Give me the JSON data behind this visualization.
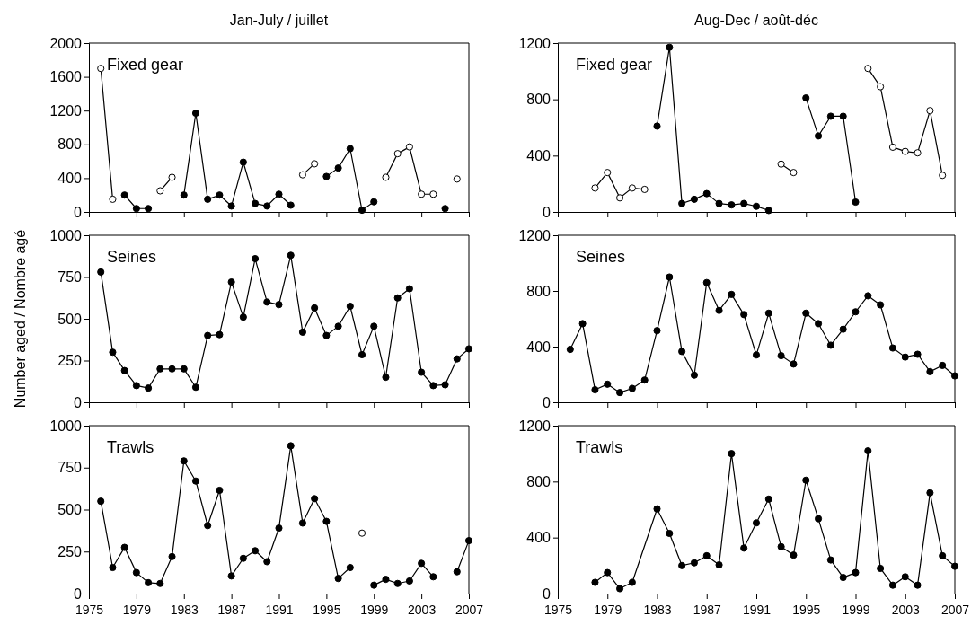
{
  "chart_data": [
    {
      "type": "line",
      "title": "Jan-July / juillet",
      "annotations": [
        "Fixed gear"
      ],
      "marker": "circle",
      "tick_labels": "y",
      "xlim": [
        1975,
        2007
      ],
      "xticks": [
        1975,
        1979,
        1983,
        1987,
        1991,
        1995,
        1999,
        2003,
        2007
      ],
      "ylim": [
        0,
        2000
      ],
      "yticks": [
        0,
        400,
        800,
        1200,
        1600,
        2000
      ],
      "series": [
        {
          "color": "#000000",
          "x": [
            1978,
            1979,
            1980,
            1981,
            1982,
            1983,
            1984,
            1985,
            1986,
            1987,
            1988,
            1989,
            1990,
            1991,
            1992,
            1993,
            1994,
            1995,
            1996,
            1997,
            1998,
            1999,
            2000,
            2001,
            2002,
            2003,
            2004,
            2005
          ],
          "values": [
            200,
            40,
            40,
            null,
            null,
            200,
            1170,
            150,
            200,
            70,
            590,
            100,
            70,
            210,
            80,
            null,
            null,
            420,
            520,
            750,
            20,
            120,
            null,
            null,
            null,
            null,
            null,
            40
          ]
        },
        {
          "color": "#000000",
          "x": [
            1976,
            1977,
            1978,
            1979,
            1980,
            1981,
            1982,
            1983,
            1984,
            1985,
            1986,
            1987,
            1988,
            1989,
            1990,
            1991,
            1992,
            1993,
            1994,
            1995,
            1996,
            1997,
            1998,
            1999,
            2000,
            2001,
            2002,
            2003,
            2004,
            2005,
            2006
          ],
          "values": [
            1700,
            150,
            null,
            null,
            null,
            250,
            410,
            null,
            null,
            null,
            null,
            null,
            null,
            null,
            null,
            null,
            null,
            440,
            570,
            null,
            null,
            null,
            null,
            null,
            410,
            690,
            770,
            210,
            210,
            null,
            390
          ],
          "colors": [
            "#ffffff",
            "#ffffff",
            null,
            null,
            null,
            "#ffffff",
            "#ffffff",
            null,
            null,
            null,
            null,
            null,
            null,
            null,
            null,
            null,
            null,
            "#ffffff",
            "#ffffff",
            null,
            null,
            null,
            null,
            null,
            "#ffffff",
            "#ffffff",
            "#ffffff",
            "#ffffff",
            "#ffffff",
            null,
            "#ffffff"
          ]
        }
      ]
    },
    {
      "type": "line",
      "title": "Aug-Dec / août-déc",
      "annotations": [
        "Fixed gear"
      ],
      "marker": "circle",
      "tick_labels": "y",
      "xlim": [
        1975,
        2007
      ],
      "xticks": [
        1975,
        1979,
        1983,
        1987,
        1991,
        1995,
        1999,
        2003,
        2007
      ],
      "ylim": [
        0,
        1200
      ],
      "yticks": [
        0,
        400,
        800,
        1200
      ],
      "series": [
        {
          "color": "#000000",
          "x": [
            1983,
            1984,
            1985,
            1986,
            1987,
            1988,
            1989,
            1990,
            1991,
            1992,
            1993,
            1994,
            1995,
            1996,
            1997,
            1998,
            1999
          ],
          "values": [
            610,
            1170,
            60,
            90,
            130,
            60,
            50,
            60,
            40,
            10,
            null,
            null,
            810,
            540,
            680,
            680,
            70
          ]
        },
        {
          "color": "#000000",
          "x": [
            1978,
            1979,
            1980,
            1981,
            1982,
            1983,
            1984,
            1985,
            1986,
            1987,
            1988,
            1989,
            1990,
            1991,
            1992,
            1993,
            1994,
            1995,
            1996,
            1997,
            1998,
            1999,
            2000,
            2001,
            2002,
            2003,
            2004,
            2005,
            2006
          ],
          "values": [
            170,
            280,
            100,
            170,
            160,
            null,
            null,
            null,
            null,
            null,
            null,
            null,
            null,
            null,
            null,
            340,
            280,
            null,
            null,
            null,
            null,
            null,
            1020,
            890,
            460,
            430,
            420,
            720,
            260
          ],
          "colors": [
            "#ffffff",
            "#ffffff",
            "#ffffff",
            "#ffffff",
            "#ffffff",
            null,
            null,
            null,
            null,
            null,
            null,
            null,
            null,
            null,
            null,
            "#ffffff",
            "#ffffff",
            null,
            null,
            null,
            null,
            null,
            "#ffffff",
            "#ffffff",
            "#ffffff",
            "#ffffff",
            "#ffffff",
            "#ffffff",
            "#ffffff"
          ]
        }
      ]
    },
    {
      "type": "line",
      "ylabel": "Number aged / Nombre agé",
      "annotations": [
        "Seines"
      ],
      "marker": "circle",
      "tick_labels": "y",
      "x": [
        1976,
        1977,
        1978,
        1979,
        1980,
        1981,
        1982,
        1983,
        1984,
        1985,
        1986,
        1987,
        1988,
        1989,
        1990,
        1991,
        1992,
        1993,
        1994,
        1995,
        1996,
        1997,
        1998,
        1999,
        2000,
        2001,
        2002,
        2003,
        2004,
        2005,
        2006,
        2007
      ],
      "xlim": [
        1975,
        2007
      ],
      "xticks": [
        1975,
        1979,
        1983,
        1987,
        1991,
        1995,
        1999,
        2003,
        2007
      ],
      "ylim": [
        0,
        1000
      ],
      "yticks": [
        0,
        250,
        500,
        750,
        1000
      ],
      "series": [
        {
          "color": "#000000",
          "values": [
            780,
            300,
            190,
            100,
            85,
            200,
            200,
            200,
            90,
            400,
            405,
            720,
            510,
            860,
            600,
            585,
            880,
            420,
            565,
            400,
            455,
            575,
            285,
            455,
            150,
            625,
            680,
            180,
            100,
            105,
            260,
            320
          ]
        }
      ]
    },
    {
      "type": "line",
      "annotations": [
        "Seines"
      ],
      "marker": "circle",
      "tick_labels": "y",
      "x": [
        1976,
        1977,
        1978,
        1979,
        1980,
        1981,
        1982,
        1983,
        1984,
        1985,
        1986,
        1987,
        1988,
        1989,
        1990,
        1991,
        1992,
        1993,
        1994,
        1995,
        1996,
        1997,
        1998,
        1999,
        2000,
        2001,
        2002,
        2003,
        2004,
        2005,
        2006,
        2007
      ],
      "xlim": [
        1975,
        2007
      ],
      "xticks": [
        1975,
        1979,
        1983,
        1987,
        1991,
        1995,
        1999,
        2003,
        2007
      ],
      "ylim": [
        0,
        1200
      ],
      "yticks": [
        0,
        400,
        800,
        1200
      ],
      "series": [
        {
          "color": "#000000",
          "values": [
            380,
            565,
            90,
            130,
            70,
            100,
            160,
            515,
            900,
            365,
            195,
            860,
            660,
            775,
            630,
            340,
            640,
            335,
            275,
            640,
            565,
            410,
            525,
            650,
            765,
            700,
            390,
            325,
            345,
            220,
            265,
            190
          ]
        }
      ]
    },
    {
      "type": "line",
      "annotations": [
        "Trawls"
      ],
      "marker": "circle",
      "xlim": [
        1975,
        2007
      ],
      "xticks": [
        1975,
        1979,
        1983,
        1987,
        1991,
        1995,
        1999,
        2003,
        2007
      ],
      "ylim": [
        0,
        1000
      ],
      "yticks": [
        0,
        250,
        500,
        750,
        1000
      ],
      "series": [
        {
          "color": "#000000",
          "x": [
            1976,
            1977,
            1978,
            1979,
            1980,
            1981,
            1982,
            1983,
            1984,
            1985,
            1986,
            1987,
            1988,
            1989,
            1990,
            1991,
            1992,
            1993,
            1994,
            1995,
            1996,
            1997,
            1998,
            1999,
            2000,
            2001,
            2002,
            2003,
            2004,
            2005,
            2006,
            2007
          ],
          "values": [
            550,
            155,
            275,
            125,
            65,
            60,
            220,
            790,
            670,
            405,
            615,
            105,
            210,
            255,
            190,
            390,
            880,
            420,
            565,
            430,
            90,
            155,
            null,
            50,
            85,
            60,
            75,
            180,
            100,
            null,
            130,
            315
          ]
        },
        {
          "color": "#000000",
          "x": [
            1998
          ],
          "values": [
            360
          ],
          "colors": [
            "#ffffff"
          ]
        }
      ]
    },
    {
      "type": "line",
      "annotations": [
        "Trawls"
      ],
      "marker": "circle",
      "xlim": [
        1975,
        2007
      ],
      "xticks": [
        1975,
        1979,
        1983,
        1987,
        1991,
        1995,
        1999,
        2003,
        2007
      ],
      "ylim": [
        0,
        1200
      ],
      "yticks": [
        0,
        400,
        800,
        1200
      ],
      "series": [
        {
          "color": "#000000",
          "x": [
            1978,
            1979,
            1980,
            1981,
            1983,
            1984,
            1985,
            1986,
            1987,
            1988,
            1989,
            1990,
            1991,
            1992,
            1993,
            1994,
            1995,
            1996,
            1997,
            1998,
            1999,
            2000,
            2001,
            2002,
            2003,
            2004,
            2005,
            2006,
            2007
          ],
          "values": [
            80,
            150,
            35,
            80,
            605,
            430,
            200,
            220,
            270,
            205,
            1000,
            325,
            505,
            675,
            335,
            275,
            810,
            535,
            240,
            115,
            150,
            1020,
            180,
            60,
            120,
            60,
            720,
            270,
            195
          ]
        }
      ]
    }
  ]
}
